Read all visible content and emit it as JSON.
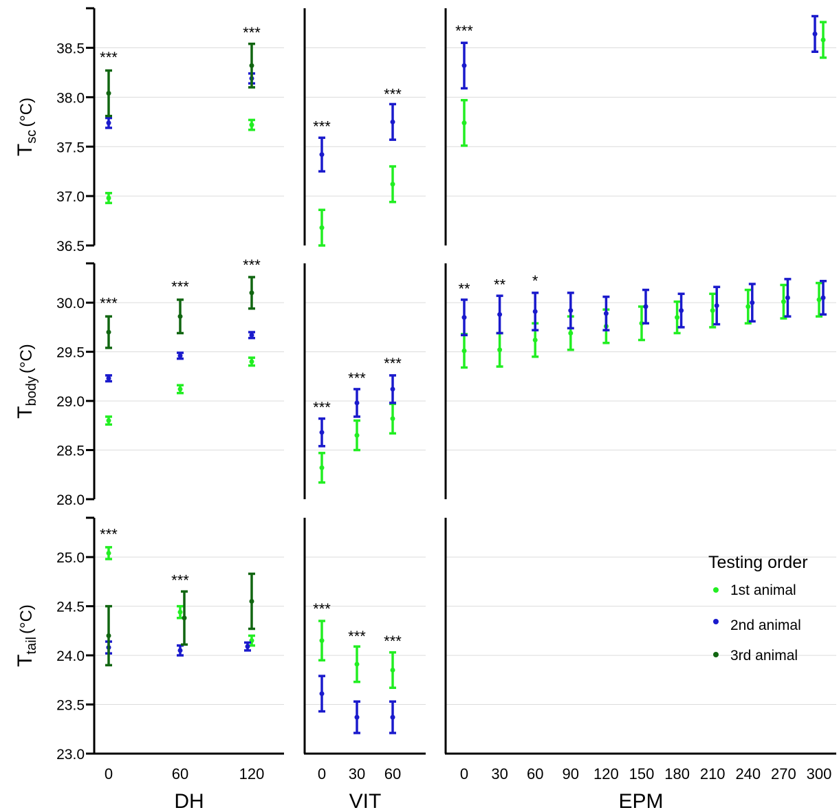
{
  "chart_data": {
    "type": "scatter",
    "description_of_errorbars": "mean +/- error",
    "colors": {
      "1st animal": "#22ee22",
      "2nd animal": "#1a1acc",
      "3rd animal": "#116611"
    },
    "columns": [
      {
        "key": "DH",
        "label": "DH",
        "x_ticks": [
          "0",
          "60",
          "120"
        ]
      },
      {
        "key": "VIT",
        "label": "VIT",
        "x_ticks": [
          "0",
          "30",
          "60"
        ]
      },
      {
        "key": "EPM",
        "label": "EPM",
        "x_ticks": [
          "0",
          "30",
          "60",
          "90",
          "120",
          "150",
          "180",
          "210",
          "240",
          "270",
          "300"
        ]
      }
    ],
    "rows": [
      {
        "key": "Tsc",
        "ylabel_main": "T",
        "ylabel_sub": "sc",
        "ylabel_unit": "(°C)",
        "ylim": [
          36.5,
          38.9
        ],
        "y_ticks": [
          36.5,
          37.0,
          37.5,
          38.0,
          38.5
        ],
        "y_tick_labels": [
          "36.5",
          "37.0",
          "37.5",
          "38.0",
          "38.5"
        ]
      },
      {
        "key": "Tbody",
        "ylabel_main": "T",
        "ylabel_sub": "body",
        "ylabel_unit": "(°C)",
        "ylim": [
          28.0,
          30.4
        ],
        "y_ticks": [
          28.0,
          28.5,
          29.0,
          29.5,
          30.0
        ],
        "y_tick_labels": [
          "28.0",
          "28.5",
          "29.0",
          "29.5",
          "30.0"
        ]
      },
      {
        "key": "Ttail",
        "ylabel_main": "T",
        "ylabel_sub": "tail",
        "ylabel_unit": "(°C)",
        "ylim": [
          23.0,
          25.4
        ],
        "y_ticks": [
          23.0,
          23.5,
          24.0,
          24.5,
          25.0
        ],
        "y_tick_labels": [
          "23.0",
          "23.5",
          "24.0",
          "24.5",
          "25.0"
        ]
      }
    ],
    "series": [
      {
        "name": "1st animal",
        "color": "#22ee22",
        "points": [
          {
            "row": "Tsc",
            "col": "DH",
            "x": 0,
            "y": 36.98,
            "err": 0.05
          },
          {
            "row": "Tsc",
            "col": "DH",
            "x": 120,
            "y": 37.72,
            "err": 0.05
          },
          {
            "row": "Tsc",
            "col": "VIT",
            "x": 0,
            "y": 36.68,
            "err": 0.18
          },
          {
            "row": "Tsc",
            "col": "VIT",
            "x": 60,
            "y": 37.12,
            "err": 0.18
          },
          {
            "row": "Tsc",
            "col": "EPM",
            "x": 0,
            "y": 37.74,
            "err": 0.23
          },
          {
            "row": "Tsc",
            "col": "EPM",
            "x": 300,
            "y": 38.58,
            "err": 0.18
          },
          {
            "row": "Tbody",
            "col": "DH",
            "x": 0,
            "y": 28.8,
            "err": 0.04
          },
          {
            "row": "Tbody",
            "col": "DH",
            "x": 60,
            "y": 29.12,
            "err": 0.04
          },
          {
            "row": "Tbody",
            "col": "DH",
            "x": 120,
            "y": 29.4,
            "err": 0.04
          },
          {
            "row": "Tbody",
            "col": "VIT",
            "x": 0,
            "y": 28.32,
            "err": 0.15
          },
          {
            "row": "Tbody",
            "col": "VIT",
            "x": 30,
            "y": 28.65,
            "err": 0.15
          },
          {
            "row": "Tbody",
            "col": "VIT",
            "x": 60,
            "y": 28.82,
            "err": 0.15
          },
          {
            "row": "Tbody",
            "col": "EPM",
            "x": 0,
            "y": 29.51,
            "err": 0.17
          },
          {
            "row": "Tbody",
            "col": "EPM",
            "x": 30,
            "y": 29.52,
            "err": 0.17
          },
          {
            "row": "Tbody",
            "col": "EPM",
            "x": 60,
            "y": 29.62,
            "err": 0.17
          },
          {
            "row": "Tbody",
            "col": "EPM",
            "x": 90,
            "y": 29.69,
            "err": 0.17
          },
          {
            "row": "Tbody",
            "col": "EPM",
            "x": 120,
            "y": 29.76,
            "err": 0.17
          },
          {
            "row": "Tbody",
            "col": "EPM",
            "x": 150,
            "y": 29.79,
            "err": 0.17
          },
          {
            "row": "Tbody",
            "col": "EPM",
            "x": 180,
            "y": 29.85,
            "err": 0.16
          },
          {
            "row": "Tbody",
            "col": "EPM",
            "x": 210,
            "y": 29.92,
            "err": 0.17
          },
          {
            "row": "Tbody",
            "col": "EPM",
            "x": 240,
            "y": 29.96,
            "err": 0.17
          },
          {
            "row": "Tbody",
            "col": "EPM",
            "x": 270,
            "y": 30.01,
            "err": 0.17
          },
          {
            "row": "Tbody",
            "col": "EPM",
            "x": 300,
            "y": 30.03,
            "err": 0.17
          },
          {
            "row": "Ttail",
            "col": "DH",
            "x": 0,
            "y": 25.04,
            "err": 0.06
          },
          {
            "row": "Ttail",
            "col": "DH",
            "x": 60,
            "y": 24.44,
            "err": 0.06
          },
          {
            "row": "Ttail",
            "col": "DH",
            "x": 120,
            "y": 24.15,
            "err": 0.05
          },
          {
            "row": "Ttail",
            "col": "VIT",
            "x": 0,
            "y": 24.15,
            "err": 0.2
          },
          {
            "row": "Ttail",
            "col": "VIT",
            "x": 30,
            "y": 23.91,
            "err": 0.18
          },
          {
            "row": "Ttail",
            "col": "VIT",
            "x": 60,
            "y": 23.85,
            "err": 0.18
          }
        ]
      },
      {
        "name": "2nd animal",
        "color": "#1a1acc",
        "points": [
          {
            "row": "Tsc",
            "col": "DH",
            "x": 0,
            "y": 37.74,
            "err": 0.05
          },
          {
            "row": "Tsc",
            "col": "DH",
            "x": 120,
            "y": 38.19,
            "err": 0.05
          },
          {
            "row": "Tsc",
            "col": "VIT",
            "x": 0,
            "y": 37.42,
            "err": 0.17
          },
          {
            "row": "Tsc",
            "col": "VIT",
            "x": 60,
            "y": 37.75,
            "err": 0.18
          },
          {
            "row": "Tsc",
            "col": "EPM",
            "x": 0,
            "y": 38.32,
            "err": 0.23
          },
          {
            "row": "Tsc",
            "col": "EPM",
            "x": 300,
            "y": 38.64,
            "err": 0.18
          },
          {
            "row": "Tbody",
            "col": "DH",
            "x": 0,
            "y": 29.23,
            "err": 0.03
          },
          {
            "row": "Tbody",
            "col": "DH",
            "x": 60,
            "y": 29.46,
            "err": 0.03
          },
          {
            "row": "Tbody",
            "col": "DH",
            "x": 120,
            "y": 29.67,
            "err": 0.03
          },
          {
            "row": "Tbody",
            "col": "VIT",
            "x": 0,
            "y": 28.68,
            "err": 0.14
          },
          {
            "row": "Tbody",
            "col": "VIT",
            "x": 30,
            "y": 28.98,
            "err": 0.14
          },
          {
            "row": "Tbody",
            "col": "VIT",
            "x": 60,
            "y": 29.12,
            "err": 0.14
          },
          {
            "row": "Tbody",
            "col": "EPM",
            "x": 0,
            "y": 29.85,
            "err": 0.18
          },
          {
            "row": "Tbody",
            "col": "EPM",
            "x": 30,
            "y": 29.88,
            "err": 0.19
          },
          {
            "row": "Tbody",
            "col": "EPM",
            "x": 60,
            "y": 29.91,
            "err": 0.19
          },
          {
            "row": "Tbody",
            "col": "EPM",
            "x": 90,
            "y": 29.92,
            "err": 0.18
          },
          {
            "row": "Tbody",
            "col": "EPM",
            "x": 120,
            "y": 29.89,
            "err": 0.17
          },
          {
            "row": "Tbody",
            "col": "EPM",
            "x": 150,
            "y": 29.96,
            "err": 0.17
          },
          {
            "row": "Tbody",
            "col": "EPM",
            "x": 180,
            "y": 29.92,
            "err": 0.17
          },
          {
            "row": "Tbody",
            "col": "EPM",
            "x": 210,
            "y": 29.97,
            "err": 0.19
          },
          {
            "row": "Tbody",
            "col": "EPM",
            "x": 240,
            "y": 30.0,
            "err": 0.19
          },
          {
            "row": "Tbody",
            "col": "EPM",
            "x": 270,
            "y": 30.05,
            "err": 0.19
          },
          {
            "row": "Tbody",
            "col": "EPM",
            "x": 300,
            "y": 30.05,
            "err": 0.17
          },
          {
            "row": "Ttail",
            "col": "DH",
            "x": 0,
            "y": 24.08,
            "err": 0.06
          },
          {
            "row": "Ttail",
            "col": "DH",
            "x": 60,
            "y": 24.05,
            "err": 0.05
          },
          {
            "row": "Ttail",
            "col": "DH",
            "x": 120,
            "y": 24.09,
            "err": 0.04
          },
          {
            "row": "Ttail",
            "col": "VIT",
            "x": 0,
            "y": 23.61,
            "err": 0.18
          },
          {
            "row": "Ttail",
            "col": "VIT",
            "x": 30,
            "y": 23.37,
            "err": 0.16
          },
          {
            "row": "Ttail",
            "col": "VIT",
            "x": 60,
            "y": 23.37,
            "err": 0.16
          }
        ]
      },
      {
        "name": "3rd animal",
        "color": "#116611",
        "points": [
          {
            "row": "Tsc",
            "col": "DH",
            "x": 0,
            "y": 38.04,
            "err": 0.23
          },
          {
            "row": "Tsc",
            "col": "DH",
            "x": 120,
            "y": 38.32,
            "err": 0.22
          },
          {
            "row": "Tbody",
            "col": "DH",
            "x": 0,
            "y": 29.7,
            "err": 0.16
          },
          {
            "row": "Tbody",
            "col": "DH",
            "x": 60,
            "y": 29.86,
            "err": 0.17
          },
          {
            "row": "Tbody",
            "col": "DH",
            "x": 120,
            "y": 30.1,
            "err": 0.16
          },
          {
            "row": "Ttail",
            "col": "DH",
            "x": 0,
            "y": 24.2,
            "err": 0.3
          },
          {
            "row": "Ttail",
            "col": "DH",
            "x": 60,
            "y": 24.38,
            "err": 0.27
          },
          {
            "row": "Ttail",
            "col": "DH",
            "x": 120,
            "y": 24.55,
            "err": 0.28
          }
        ]
      }
    ],
    "annotations": [
      {
        "row": "Tsc",
        "col": "DH",
        "x": 0,
        "text": "***",
        "y": 38.35
      },
      {
        "row": "Tsc",
        "col": "DH",
        "x": 120,
        "text": "***",
        "y": 38.6
      },
      {
        "row": "Tsc",
        "col": "VIT",
        "x": 0,
        "text": "***",
        "y": 37.65
      },
      {
        "row": "Tsc",
        "col": "VIT",
        "x": 60,
        "text": "***",
        "y": 37.98
      },
      {
        "row": "Tsc",
        "col": "EPM",
        "x": 0,
        "text": "***",
        "y": 38.62
      },
      {
        "row": "Tbody",
        "col": "DH",
        "x": 0,
        "text": "***",
        "y": 29.94
      },
      {
        "row": "Tbody",
        "col": "DH",
        "x": 60,
        "text": "***",
        "y": 30.11
      },
      {
        "row": "Tbody",
        "col": "DH",
        "x": 120,
        "text": "***",
        "y": 30.33
      },
      {
        "row": "Tbody",
        "col": "VIT",
        "x": 0,
        "text": "***",
        "y": 28.88
      },
      {
        "row": "Tbody",
        "col": "VIT",
        "x": 30,
        "text": "***",
        "y": 29.18
      },
      {
        "row": "Tbody",
        "col": "VIT",
        "x": 60,
        "text": "***",
        "y": 29.33
      },
      {
        "row": "Tbody",
        "col": "EPM",
        "x": 0,
        "text": "**",
        "y": 30.09
      },
      {
        "row": "Tbody",
        "col": "EPM",
        "x": 30,
        "text": "**",
        "y": 30.13
      },
      {
        "row": "Tbody",
        "col": "EPM",
        "x": 60,
        "text": "*",
        "y": 30.17
      },
      {
        "row": "Ttail",
        "col": "DH",
        "x": 0,
        "text": "***",
        "y": 25.18
      },
      {
        "row": "Ttail",
        "col": "DH",
        "x": 60,
        "text": "***",
        "y": 24.71
      },
      {
        "row": "Ttail",
        "col": "VIT",
        "x": 0,
        "text": "***",
        "y": 24.42
      },
      {
        "row": "Ttail",
        "col": "VIT",
        "x": 30,
        "text": "***",
        "y": 24.14
      },
      {
        "row": "Ttail",
        "col": "VIT",
        "x": 60,
        "text": "***",
        "y": 24.09
      }
    ],
    "legend": {
      "title": "Testing order",
      "position": "bottom-right of EPM tail panel",
      "entries": [
        "1st animal",
        "2nd animal",
        "3rd animal"
      ]
    },
    "grid": "horizontal major gridlines"
  }
}
